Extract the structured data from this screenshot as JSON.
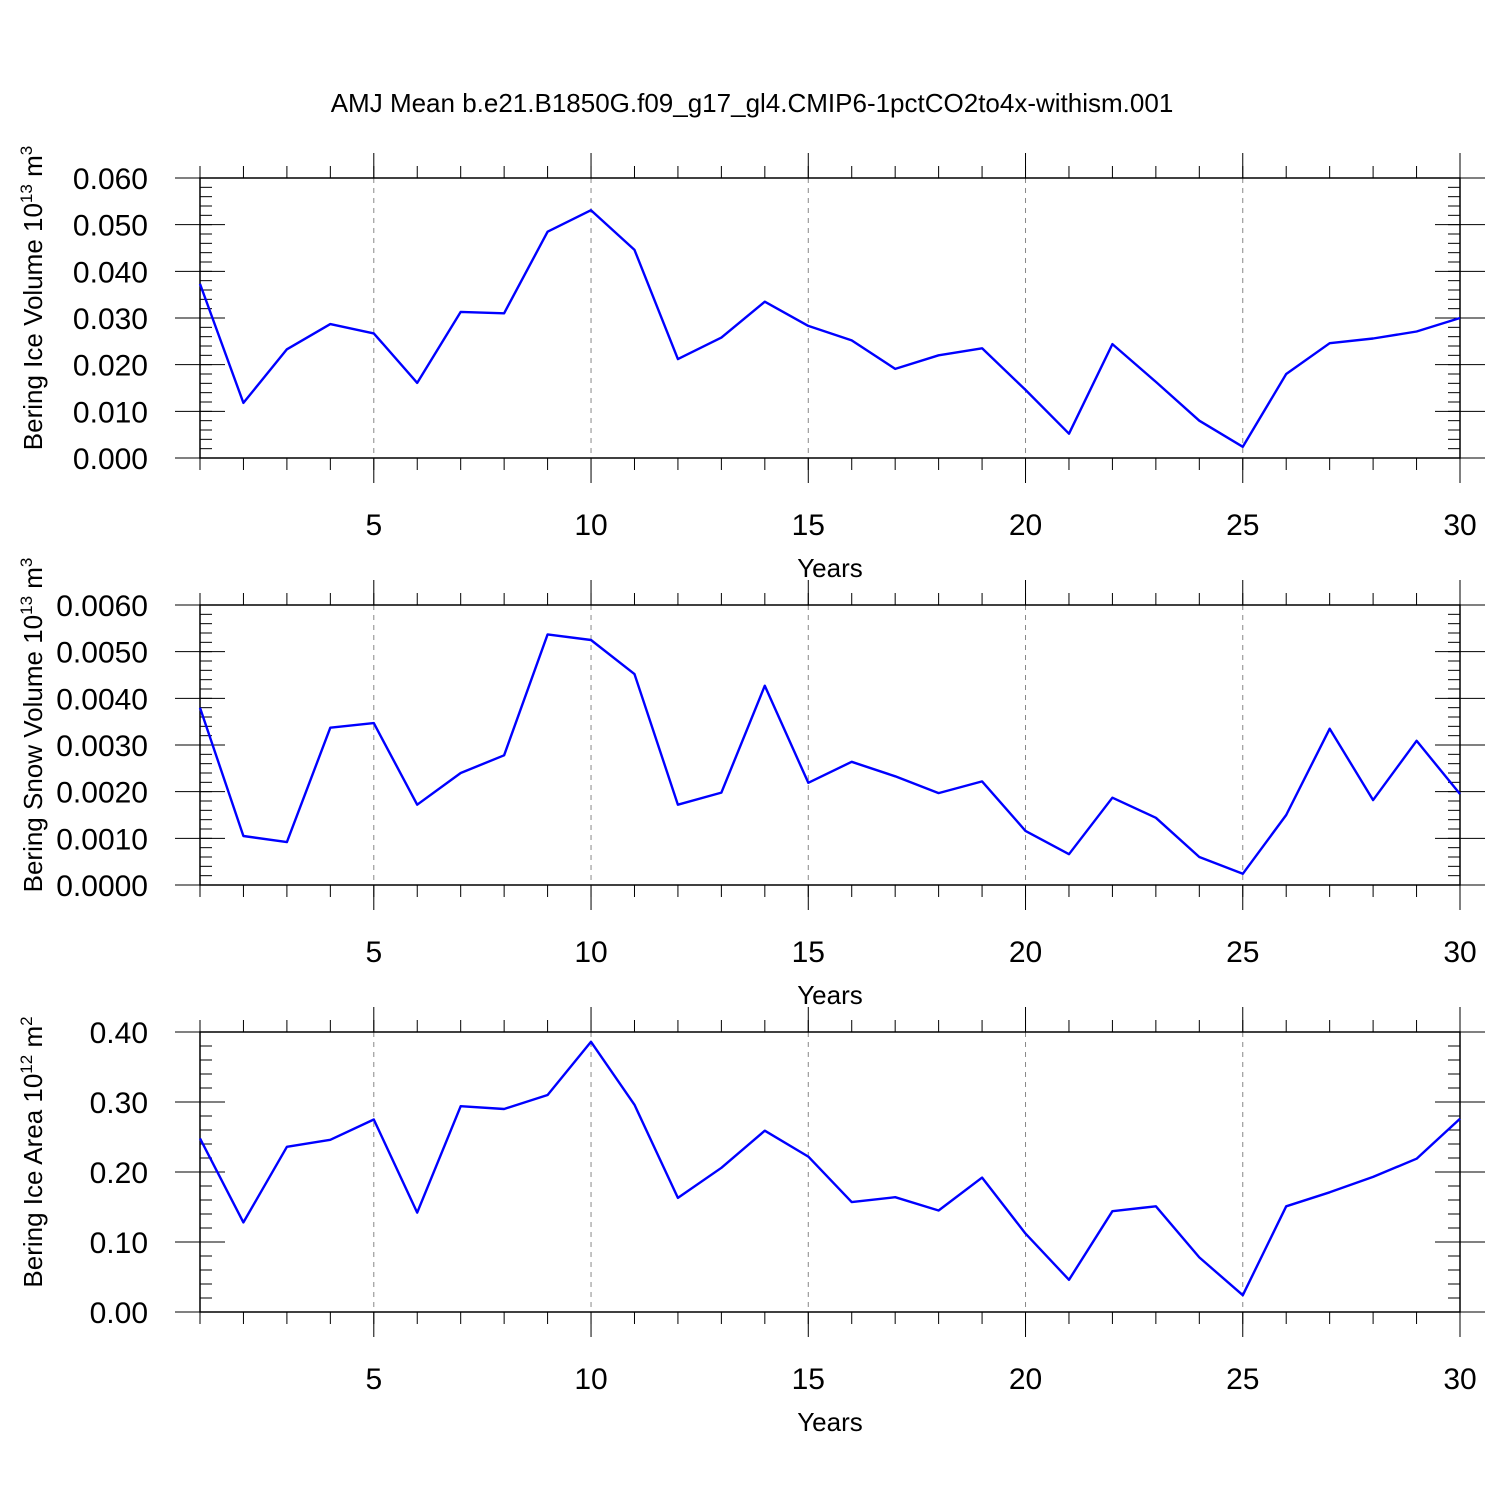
{
  "figure": {
    "title": "AMJ Mean b.e21.B1850G.f09_g17_gl4.CMIP6-1pctCO2to4x-withism.001"
  },
  "chart_data": [
    {
      "type": "line",
      "title": "",
      "xlabel": "Years",
      "ylabel_base": "Bering Ice Volume 10",
      "ylabel_exp": "13",
      "ylabel_unit": " m",
      "ylabel_unit_exp": "3",
      "xlim": [
        1,
        30
      ],
      "ylim": [
        0,
        0.06
      ],
      "xticks": [
        5,
        10,
        15,
        20,
        25,
        30
      ],
      "xtick_labels": [
        "5",
        "10",
        "15",
        "20",
        "25",
        "30"
      ],
      "yticks": [
        0,
        0.01,
        0.02,
        0.03,
        0.04,
        0.05,
        0.06
      ],
      "ytick_labels": [
        "0.000",
        "0.010",
        "0.020",
        "0.030",
        "0.040",
        "0.050",
        "0.060"
      ],
      "grid": "vertical dashed at major x ticks",
      "color": "#0000ff",
      "x": [
        1,
        2,
        3,
        4,
        5,
        6,
        7,
        8,
        9,
        10,
        11,
        12,
        13,
        14,
        15,
        16,
        17,
        18,
        19,
        20,
        21,
        22,
        23,
        24,
        25,
        26,
        27,
        28,
        29,
        30
      ],
      "values": [
        0.0373,
        0.0118,
        0.0233,
        0.0287,
        0.0267,
        0.0161,
        0.0313,
        0.031,
        0.0485,
        0.0531,
        0.0446,
        0.0212,
        0.0258,
        0.0335,
        0.0283,
        0.0252,
        0.0191,
        0.022,
        0.0235,
        0.0146,
        0.0052,
        0.0244,
        0.0163,
        0.008,
        0.0024,
        0.018,
        0.0246,
        0.0256,
        0.0271,
        0.03
      ]
    },
    {
      "type": "line",
      "title": "",
      "xlabel": "Years",
      "ylabel_base": "Bering Snow Volume 10",
      "ylabel_exp": "13",
      "ylabel_unit": " m",
      "ylabel_unit_exp": "3",
      "xlim": [
        1,
        30
      ],
      "ylim": [
        0,
        0.006
      ],
      "xticks": [
        5,
        10,
        15,
        20,
        25,
        30
      ],
      "xtick_labels": [
        "5",
        "10",
        "15",
        "20",
        "25",
        "30"
      ],
      "yticks": [
        0,
        0.001,
        0.002,
        0.003,
        0.004,
        0.005,
        0.006
      ],
      "ytick_labels": [
        "0.0000",
        "0.0010",
        "0.0020",
        "0.0030",
        "0.0040",
        "0.0050",
        "0.0060"
      ],
      "grid": "vertical dashed at major x ticks",
      "color": "#0000ff",
      "x": [
        1,
        2,
        3,
        4,
        5,
        6,
        7,
        8,
        9,
        10,
        11,
        12,
        13,
        14,
        15,
        16,
        17,
        18,
        19,
        20,
        21,
        22,
        23,
        24,
        25,
        26,
        27,
        28,
        29,
        30
      ],
      "values": [
        0.0038,
        0.00105,
        0.00092,
        0.00337,
        0.00347,
        0.00172,
        0.0024,
        0.00278,
        0.00537,
        0.00525,
        0.00452,
        0.00172,
        0.00198,
        0.00427,
        0.00219,
        0.00264,
        0.00233,
        0.00197,
        0.00222,
        0.00116,
        0.00066,
        0.00187,
        0.00144,
        0.0006,
        0.00024,
        0.0015,
        0.00335,
        0.00182,
        0.00309,
        0.00195
      ]
    },
    {
      "type": "line",
      "title": "",
      "xlabel": "Years",
      "ylabel_base": "Bering Ice Area 10",
      "ylabel_exp": "12",
      "ylabel_unit": " m",
      "ylabel_unit_exp": "2",
      "xlim": [
        1,
        30
      ],
      "ylim": [
        0,
        0.4
      ],
      "xticks": [
        5,
        10,
        15,
        20,
        25,
        30
      ],
      "xtick_labels": [
        "5",
        "10",
        "15",
        "20",
        "25",
        "30"
      ],
      "yticks": [
        0,
        0.1,
        0.2,
        0.3,
        0.4
      ],
      "ytick_labels": [
        "0.00",
        "0.10",
        "0.20",
        "0.30",
        "0.40"
      ],
      "grid": "vertical dashed at major x ticks",
      "color": "#0000ff",
      "x": [
        1,
        2,
        3,
        4,
        5,
        6,
        7,
        8,
        9,
        10,
        11,
        12,
        13,
        14,
        15,
        16,
        17,
        18,
        19,
        20,
        21,
        22,
        23,
        24,
        25,
        26,
        27,
        28,
        29,
        30
      ],
      "values": [
        0.248,
        0.128,
        0.236,
        0.246,
        0.275,
        0.142,
        0.294,
        0.29,
        0.31,
        0.386,
        0.296,
        0.163,
        0.206,
        0.259,
        0.222,
        0.157,
        0.164,
        0.145,
        0.192,
        0.112,
        0.046,
        0.144,
        0.151,
        0.078,
        0.024,
        0.151,
        0.171,
        0.193,
        0.219,
        0.276
      ]
    }
  ]
}
